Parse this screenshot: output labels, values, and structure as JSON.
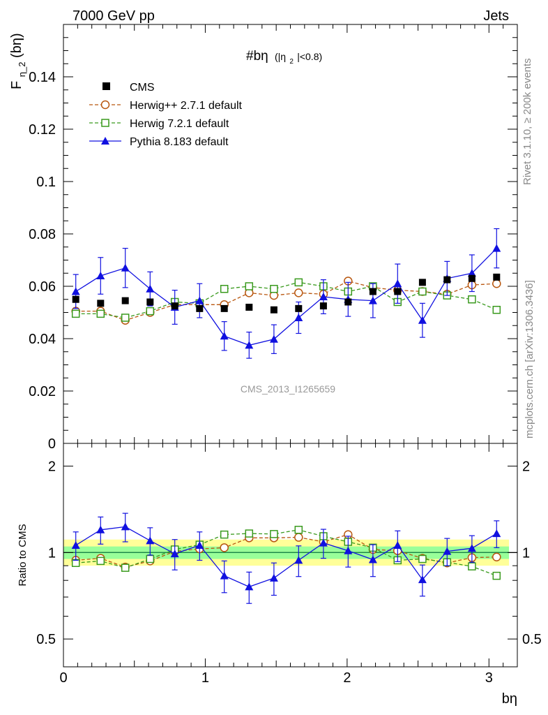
{
  "header": {
    "left": "7000 GeV pp",
    "right": "Jets"
  },
  "side_labels": {
    "rivet": "Rivet 3.1.10, ≥ 200k events",
    "mcplots": "mcplots.cern.ch [arXiv:1306.3436]"
  },
  "watermark": "CMS_2013_I1265659",
  "chart_data": [
    {
      "type": "scatter",
      "title_main": "#bη",
      "title_sub": "(|η",
      "title_sub_idx": "2",
      "title_sub_tail": "|<0.8)",
      "ylabel_main": "F",
      "ylabel_sub": "η_2",
      "ylabel_tail": "(bη)",
      "xlim": [
        0,
        3.2
      ],
      "ylim": [
        0,
        0.16
      ],
      "yticks": [
        0,
        0.02,
        0.04,
        0.06,
        0.08,
        0.1,
        0.12,
        0.14
      ],
      "ytick_labels": [
        "0",
        "0.02",
        "0.04",
        "0.06",
        "0.08",
        "0.1",
        "0.12",
        "0.14"
      ],
      "x": [
        0.087,
        0.262,
        0.436,
        0.611,
        0.785,
        0.96,
        1.134,
        1.309,
        1.484,
        1.658,
        1.833,
        2.007,
        2.182,
        2.356,
        2.531,
        2.705,
        2.88,
        3.054
      ],
      "series": [
        {
          "name": "CMS",
          "style": "data",
          "color": "#000000",
          "values": [
            0.055,
            0.0535,
            0.0545,
            0.054,
            0.0525,
            0.0515,
            0.0515,
            0.052,
            0.051,
            0.0515,
            0.0525,
            0.054,
            0.058,
            0.058,
            0.0615,
            0.0625,
            0.063,
            0.0635
          ]
        },
        {
          "name": "Herwig++ 2.7.1 default",
          "style": "circle",
          "color": "#b8560e",
          "values": [
            0.0505,
            0.0505,
            0.047,
            0.05,
            0.053,
            0.053,
            0.053,
            0.0575,
            0.0565,
            0.0575,
            0.057,
            0.062,
            0.0595,
            0.0585,
            0.058,
            0.057,
            0.0605,
            0.061
          ]
        },
        {
          "name": "Herwig 7.2.1 default",
          "style": "square",
          "color": "#3a9a1e",
          "values": [
            0.0495,
            0.0495,
            0.048,
            0.0505,
            0.054,
            0.0535,
            0.059,
            0.06,
            0.059,
            0.0615,
            0.06,
            0.058,
            0.06,
            0.054,
            0.058,
            0.0565,
            0.055,
            0.051
          ]
        },
        {
          "name": "Pythia 8.183 default",
          "style": "triangle",
          "color": "#1010e0",
          "values": [
            0.058,
            0.064,
            0.067,
            0.059,
            0.052,
            0.0545,
            0.041,
            0.0375,
            0.0398,
            0.048,
            0.056,
            0.055,
            0.0545,
            0.061,
            0.047,
            0.063,
            0.065,
            0.0745
          ],
          "errors": [
            0.0065,
            0.007,
            0.0075,
            0.0065,
            0.0065,
            0.0065,
            0.0055,
            0.005,
            0.0055,
            0.006,
            0.0065,
            0.0065,
            0.0065,
            0.0075,
            0.0065,
            0.0065,
            0.007,
            0.0075
          ]
        }
      ]
    },
    {
      "type": "scatter",
      "ylabel": "Ratio to CMS",
      "xlabel": "bη",
      "scale": "log",
      "xlim": [
        0,
        3.2
      ],
      "ylim": [
        0.4,
        2.4
      ],
      "xticks": [
        0,
        1,
        2,
        3
      ],
      "xtick_labels": [
        "0",
        "1",
        "2",
        "3"
      ],
      "yticks": [
        0.5,
        1,
        2
      ],
      "ytick_labels": [
        "0.5",
        "1",
        "2"
      ],
      "band_yellow": [
        0.9,
        1.11
      ],
      "band_green": [
        0.95,
        1.05
      ],
      "x": [
        0.087,
        0.262,
        0.436,
        0.611,
        0.785,
        0.96,
        1.134,
        1.309,
        1.484,
        1.658,
        1.833,
        2.007,
        2.182,
        2.356,
        2.531,
        2.705,
        2.88,
        3.054
      ],
      "series": [
        {
          "name": "Herwig++ 2.7.1 default",
          "style": "circle",
          "color": "#b8560e",
          "values": [
            0.94,
            0.955,
            0.89,
            0.935,
            1.01,
            1.03,
            1.04,
            1.125,
            1.125,
            1.13,
            1.09,
            1.155,
            1.025,
            1.015,
            0.955,
            0.92,
            0.96,
            0.965
          ]
        },
        {
          "name": "Herwig 7.2.1 default",
          "style": "square",
          "color": "#3a9a1e",
          "values": [
            0.92,
            0.935,
            0.885,
            0.95,
            1.025,
            1.065,
            1.155,
            1.165,
            1.16,
            1.2,
            1.14,
            1.09,
            1.04,
            0.94,
            0.95,
            0.925,
            0.895,
            0.83
          ]
        },
        {
          "name": "Pythia 8.183 default",
          "style": "triangle",
          "color": "#1010e0",
          "values": [
            1.06,
            1.2,
            1.23,
            1.1,
            0.99,
            1.06,
            0.83,
            0.76,
            0.815,
            0.94,
            1.08,
            1.015,
            0.945,
            1.06,
            0.805,
            1.01,
            1.035,
            1.165
          ],
          "errors": [
            0.12,
            0.13,
            0.14,
            0.12,
            0.12,
            0.12,
            0.105,
            0.095,
            0.105,
            0.115,
            0.125,
            0.125,
            0.12,
            0.13,
            0.1,
            0.11,
            0.11,
            0.125
          ]
        }
      ]
    }
  ]
}
